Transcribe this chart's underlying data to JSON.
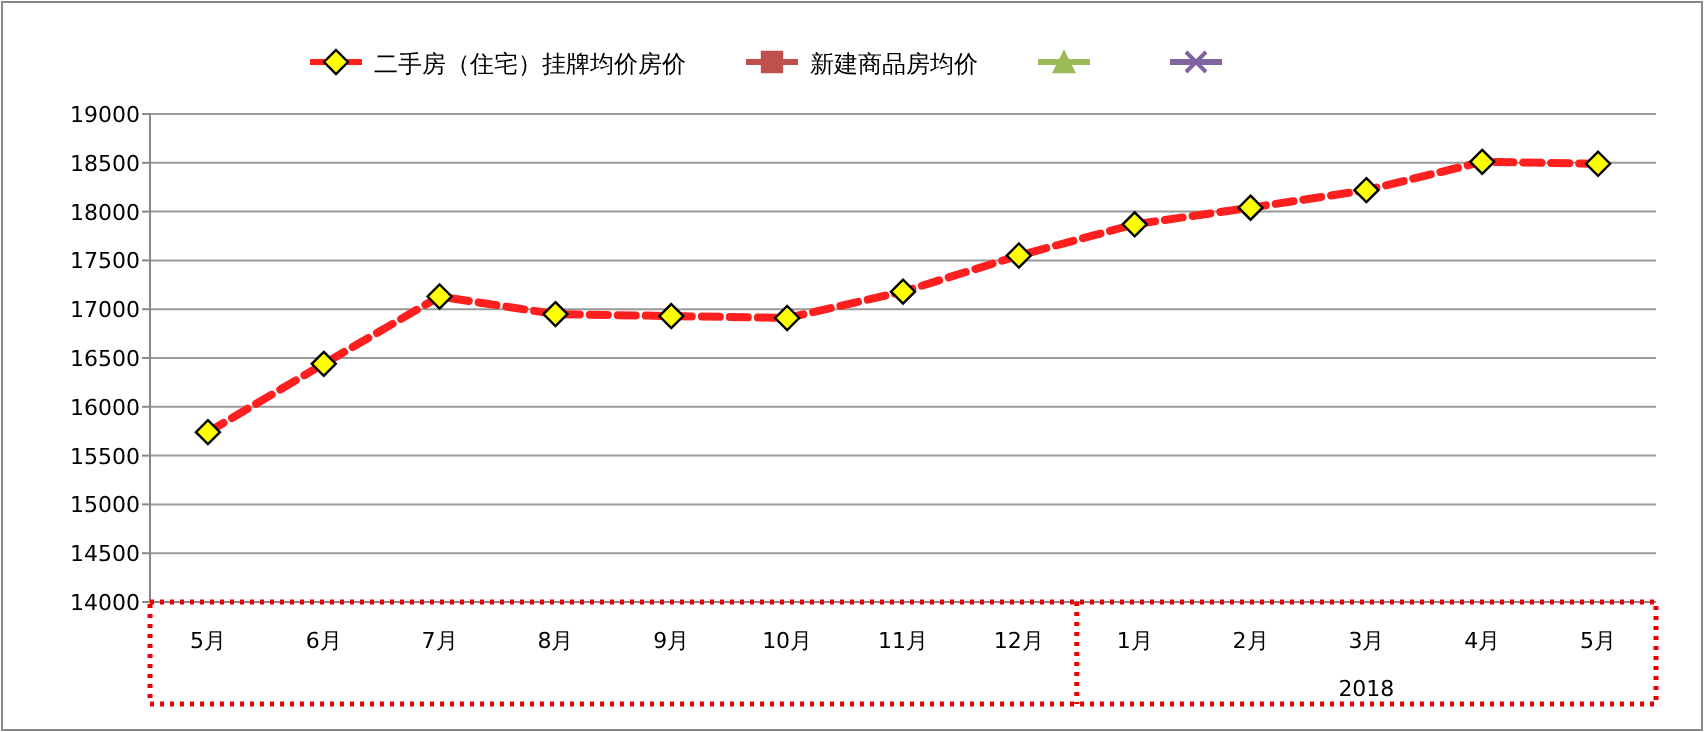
{
  "chart_data": {
    "type": "line",
    "categories": [
      "5月",
      "6月",
      "7月",
      "8月",
      "9月",
      "10月",
      "11月",
      "12月",
      "1月",
      "2月",
      "3月",
      "4月",
      "5月"
    ],
    "series": [
      {
        "name": "二手房（住宅）挂牌均价房价",
        "color": "#ff1f1f",
        "marker": "diamond",
        "line_style": "dashed",
        "values": [
          15740,
          16440,
          17130,
          16950,
          16930,
          16910,
          17180,
          17550,
          17870,
          18040,
          18220,
          18510,
          18490
        ]
      },
      {
        "name": "新建商品房均价",
        "color": "#c0504d",
        "marker": "square",
        "line_style": "solid",
        "values": [
          null,
          null,
          null,
          null,
          null,
          null,
          null,
          null,
          null,
          null,
          null,
          null,
          null
        ]
      },
      {
        "color": "#9bbb59",
        "marker": "triangle",
        "line_style": "solid",
        "values": [
          null,
          null,
          null,
          null,
          null,
          null,
          null,
          null,
          null,
          null,
          null,
          null,
          null
        ]
      },
      {
        "color": "#8064a2",
        "marker": "cross",
        "line_style": "solid",
        "values": [
          null,
          null,
          null,
          null,
          null,
          null,
          null,
          null,
          null,
          null,
          null,
          null,
          null
        ]
      }
    ],
    "ylim": [
      14000,
      19000
    ],
    "yticks": [
      14000,
      14500,
      15000,
      15500,
      16000,
      16500,
      17000,
      17500,
      18000,
      18500,
      19000
    ],
    "grid": "y",
    "legend": "top",
    "annotations": [
      "2018"
    ]
  }
}
